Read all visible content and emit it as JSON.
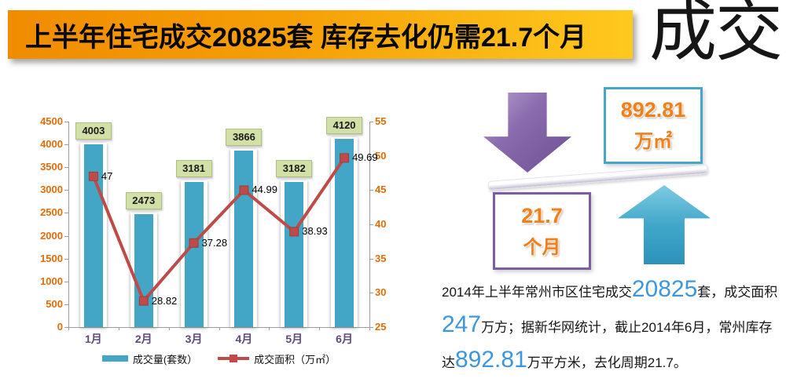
{
  "banner": {
    "title": "上半年住宅成交20825套 库存去化仍需21.7个月",
    "watermark": "成交"
  },
  "chart_data": {
    "type": "combo-bar-line",
    "categories": [
      "1月",
      "2月",
      "3月",
      "4月",
      "5月",
      "6月"
    ],
    "series": [
      {
        "name": "成交量(套数）",
        "type": "bar",
        "axis": "left",
        "color": "#44A6C6",
        "values": [
          4003,
          2473,
          3181,
          3866,
          3182,
          4120
        ]
      },
      {
        "name": "成交面积（万㎡）",
        "type": "line",
        "axis": "right",
        "color": "#BE4B48",
        "values": [
          47,
          28.82,
          37.28,
          44.99,
          38.93,
          49.69
        ]
      }
    ],
    "left_axis": {
      "min": 0,
      "max": 4500,
      "step": 500
    },
    "right_axis": {
      "min": 25,
      "max": 55,
      "step": 5
    },
    "legend_position": "bottom",
    "grid": false
  },
  "infographic": {
    "down_arrow_color": "#8064A2",
    "up_arrow_color": "#3DA4C8",
    "area_box": {
      "value": "892.81",
      "unit": "万㎡",
      "border_color": "#44A7C8"
    },
    "period_box": {
      "value": "21.7",
      "unit": "个月",
      "border_color": "#7C5CA6"
    }
  },
  "paragraph": {
    "lines": [
      [
        {
          "t": "2014年上半年常州市区住宅成交"
        },
        {
          "t": "20825",
          "hl": true
        },
        {
          "t": "套，成交面积"
        }
      ],
      [
        {
          "t": "247",
          "hl": true
        },
        {
          "t": "万方；据新华网统计，截止2014年6月，常州库存"
        }
      ],
      [
        {
          "t": "达"
        },
        {
          "t": "892.81",
          "hl": true
        },
        {
          "t": "万平方米，去化周期21.7。"
        }
      ]
    ]
  },
  "colors": {
    "banner_gradient_start": "#F08C00",
    "banner_gradient_end": "#FFC91E",
    "axis_label_orange": "#E36C09",
    "month_label_purple": "#5F497A",
    "bar_value_box_green": "#D2E0A8",
    "highlight_blue": "#3E96DB"
  }
}
